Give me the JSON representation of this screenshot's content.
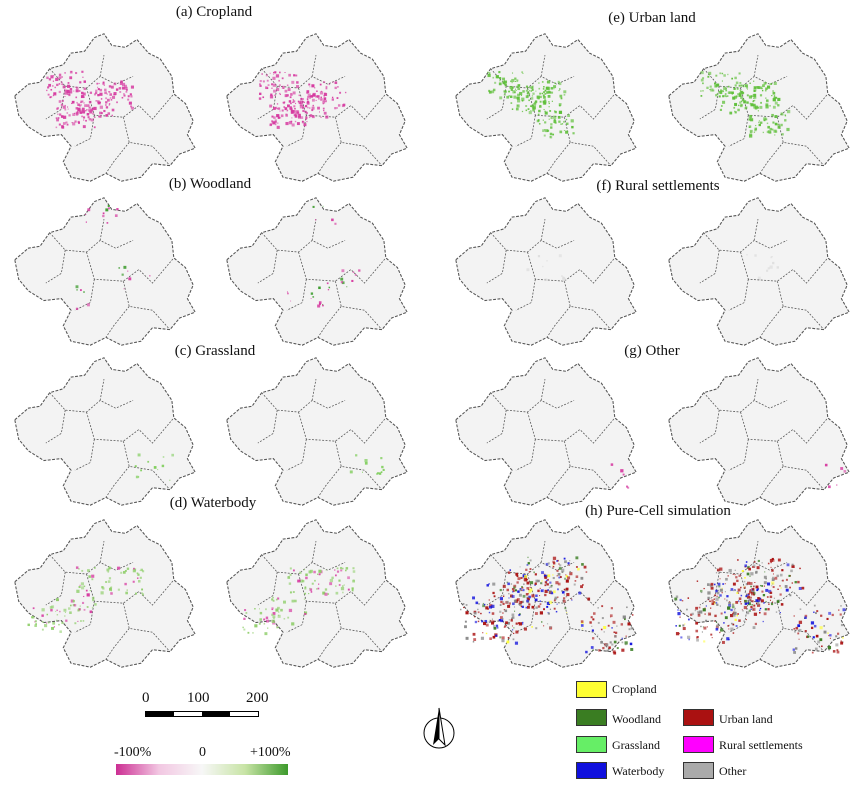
{
  "panels": [
    {
      "id": "a",
      "title": "(a) Cropland"
    },
    {
      "id": "b",
      "title": "(b) Woodland"
    },
    {
      "id": "c",
      "title": "(c) Grassland"
    },
    {
      "id": "d",
      "title": "(d) Waterbody"
    },
    {
      "id": "e",
      "title": "(e) Urban land"
    },
    {
      "id": "f",
      "title": "(f) Rural settlements"
    },
    {
      "id": "g",
      "title": "(g) Other"
    },
    {
      "id": "h",
      "title": "(h) Pure-Cell simulation"
    }
  ],
  "scale_bar": {
    "labels": [
      "0",
      "100",
      "200"
    ]
  },
  "color_ramp": {
    "labels": [
      "-100%",
      "0",
      "+100%"
    ],
    "colors": [
      "#cc2f93",
      "#f2c7e2",
      "#f7f7f7",
      "#c8e4a6",
      "#3d9a2c"
    ]
  },
  "land_legend": [
    {
      "label": "Cropland",
      "color": "#ffff33"
    },
    {
      "label": "Woodland",
      "color": "#3a7d22"
    },
    {
      "label": "Grassland",
      "color": "#66ee66"
    },
    {
      "label": "Waterbody",
      "color": "#1010dd"
    },
    {
      "label": "Urban land",
      "color": "#aa1111"
    },
    {
      "label": "Rural settlements",
      "color": "#ff00ff"
    },
    {
      "label": "Other",
      "color": "#aaaaaa"
    }
  ],
  "map_colors": {
    "fill": "#f3f3f3",
    "border": "#555555",
    "negative": "#cc2f93",
    "positive": "#4aa52e"
  },
  "icons": {
    "north_arrow": "north-arrow-icon"
  }
}
